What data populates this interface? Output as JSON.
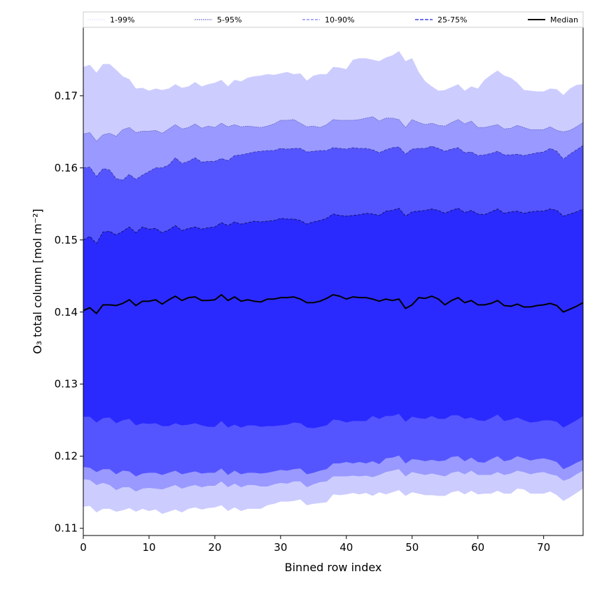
{
  "chart_data": {
    "type": "area",
    "xlabel": "Binned row index",
    "ylabel": "O₃ total column [mol m⁻²]",
    "xlim": [
      0,
      76
    ],
    "ylim": [
      0.109,
      0.1795
    ],
    "xticks": [
      0,
      10,
      20,
      30,
      40,
      50,
      60,
      70
    ],
    "yticks": [
      0.11,
      0.12,
      0.13,
      0.14,
      0.15,
      0.16,
      0.17
    ],
    "ytick_labels": [
      "0.11",
      "0.12",
      "0.13",
      "0.14",
      "0.15",
      "0.16",
      "0.17"
    ],
    "legend_position": "top",
    "colors": {
      "band_1_99": "#ccccff",
      "band_5_95": "#9999ff",
      "band_10_90": "#5555ff",
      "band_25_75": "#2a2aff",
      "median": "#000000",
      "line_1_99": "#e0e0ff",
      "line_5_95": "#6060c0",
      "line_10_90": "#3030a0",
      "line_25_75": "#101060"
    },
    "x": [
      0,
      1,
      2,
      3,
      4,
      5,
      6,
      7,
      8,
      9,
      10,
      11,
      12,
      13,
      14,
      15,
      16,
      17,
      18,
      19,
      20,
      21,
      22,
      23,
      24,
      25,
      26,
      27,
      28,
      29,
      30,
      31,
      32,
      33,
      34,
      35,
      36,
      37,
      38,
      39,
      40,
      41,
      42,
      43,
      44,
      45,
      46,
      47,
      48,
      49,
      50,
      51,
      52,
      53,
      54,
      55,
      56,
      57,
      58,
      59,
      60,
      61,
      62,
      63,
      64,
      65,
      66,
      67,
      68,
      69,
      70,
      71,
      72,
      73,
      74,
      75,
      76
    ],
    "legend": [
      "1-99%",
      "5-95%",
      "10-90%",
      "25-75%",
      "Median"
    ],
    "series": [
      {
        "name": "Median",
        "values": [
          0.1402,
          0.1406,
          0.1398,
          0.141,
          0.141,
          0.1409,
          0.1412,
          0.1417,
          0.1409,
          0.1415,
          0.1415,
          0.1417,
          0.1411,
          0.1417,
          0.1422,
          0.1416,
          0.142,
          0.1421,
          0.1416,
          0.1416,
          0.1417,
          0.1424,
          0.1416,
          0.1421,
          0.1415,
          0.1417,
          0.1415,
          0.1414,
          0.1418,
          0.1418,
          0.142,
          0.142,
          0.1421,
          0.1418,
          0.1413,
          0.1413,
          0.1415,
          0.1419,
          0.1424,
          0.1422,
          0.1418,
          0.1421,
          0.142,
          0.142,
          0.1418,
          0.1415,
          0.1418,
          0.1416,
          0.1418,
          0.1405,
          0.141,
          0.142,
          0.1419,
          0.1422,
          0.1418,
          0.141,
          0.1416,
          0.142,
          0.1413,
          0.1416,
          0.141,
          0.141,
          0.1412,
          0.1416,
          0.1409,
          0.1408,
          0.1411,
          0.1407,
          0.1407,
          0.1409,
          0.141,
          0.1412,
          0.1409,
          0.14,
          0.1404,
          0.1408,
          0.1413
        ]
      },
      {
        "name": "p1",
        "values": [
          0.113,
          0.1131,
          0.1122,
          0.1127,
          0.1127,
          0.1123,
          0.1125,
          0.1128,
          0.1123,
          0.1127,
          0.1124,
          0.1126,
          0.112,
          0.1123,
          0.1126,
          0.1122,
          0.1127,
          0.1129,
          0.1126,
          0.1128,
          0.1129,
          0.1132,
          0.1124,
          0.1129,
          0.1124,
          0.1127,
          0.1127,
          0.1127,
          0.1132,
          0.1134,
          0.1137,
          0.1137,
          0.1138,
          0.114,
          0.1132,
          0.1134,
          0.1135,
          0.1136,
          0.1147,
          0.1146,
          0.1147,
          0.1149,
          0.1147,
          0.1149,
          0.1145,
          0.115,
          0.1147,
          0.115,
          0.1153,
          0.1145,
          0.115,
          0.1148,
          0.1146,
          0.1146,
          0.1145,
          0.1145,
          0.115,
          0.1152,
          0.1147,
          0.1152,
          0.1147,
          0.1148,
          0.1148,
          0.1152,
          0.1148,
          0.1148,
          0.1155,
          0.1154,
          0.1148,
          0.1148,
          0.1148,
          0.1151,
          0.1146,
          0.1138,
          0.1143,
          0.1149,
          0.1155
        ]
      },
      {
        "name": "p5",
        "values": [
          0.1168,
          0.1167,
          0.116,
          0.1163,
          0.116,
          0.1153,
          0.1157,
          0.1157,
          0.1151,
          0.1155,
          0.1156,
          0.1155,
          0.1154,
          0.1157,
          0.116,
          0.1155,
          0.1158,
          0.116,
          0.1157,
          0.1159,
          0.1159,
          0.1165,
          0.1157,
          0.1162,
          0.1157,
          0.116,
          0.116,
          0.1158,
          0.1158,
          0.1161,
          0.1163,
          0.1162,
          0.1165,
          0.1165,
          0.1157,
          0.1161,
          0.1164,
          0.1165,
          0.1172,
          0.1172,
          0.1172,
          0.1173,
          0.1172,
          0.1173,
          0.1171,
          0.1174,
          0.1178,
          0.118,
          0.1182,
          0.1172,
          0.1178,
          0.1176,
          0.1174,
          0.1176,
          0.1174,
          0.1172,
          0.1177,
          0.1179,
          0.1175,
          0.118,
          0.1174,
          0.1174,
          0.1174,
          0.1178,
          0.1174,
          0.1176,
          0.118,
          0.1178,
          0.1175,
          0.1177,
          0.1178,
          0.1175,
          0.1173,
          0.1166,
          0.1169,
          0.1175,
          0.118
        ]
      },
      {
        "name": "p10",
        "values": [
          0.1185,
          0.1184,
          0.1178,
          0.1182,
          0.1182,
          0.1175,
          0.118,
          0.1179,
          0.1172,
          0.1176,
          0.1177,
          0.1177,
          0.1174,
          0.1177,
          0.118,
          0.1175,
          0.1177,
          0.1179,
          0.1176,
          0.1177,
          0.1177,
          0.1183,
          0.1174,
          0.118,
          0.1175,
          0.1177,
          0.1177,
          0.1176,
          0.1177,
          0.1179,
          0.1181,
          0.118,
          0.1182,
          0.1183,
          0.1175,
          0.1177,
          0.118,
          0.1182,
          0.119,
          0.119,
          0.1192,
          0.119,
          0.1192,
          0.119,
          0.1193,
          0.1189,
          0.1197,
          0.1198,
          0.1201,
          0.119,
          0.1196,
          0.1195,
          0.1193,
          0.1195,
          0.1193,
          0.1194,
          0.1199,
          0.12,
          0.1193,
          0.1198,
          0.1192,
          0.1191,
          0.1196,
          0.12,
          0.1193,
          0.1195,
          0.12,
          0.1197,
          0.1194,
          0.1196,
          0.1197,
          0.1195,
          0.1192,
          0.1182,
          0.1186,
          0.1191,
          0.1195
        ]
      },
      {
        "name": "p25",
        "values": [
          0.1255,
          0.1255,
          0.1247,
          0.1253,
          0.1254,
          0.1246,
          0.125,
          0.1252,
          0.1243,
          0.1246,
          0.1245,
          0.1246,
          0.1242,
          0.1242,
          0.1246,
          0.1243,
          0.1244,
          0.1246,
          0.1243,
          0.1241,
          0.1241,
          0.1249,
          0.124,
          0.1244,
          0.124,
          0.1243,
          0.1243,
          0.1241,
          0.1242,
          0.1242,
          0.1243,
          0.1244,
          0.1247,
          0.1246,
          0.124,
          0.1239,
          0.1241,
          0.1243,
          0.1251,
          0.125,
          0.1247,
          0.1249,
          0.1249,
          0.1249,
          0.1256,
          0.1252,
          0.1256,
          0.1256,
          0.1259,
          0.1248,
          0.1255,
          0.1253,
          0.1252,
          0.1256,
          0.1252,
          0.1252,
          0.1257,
          0.1257,
          0.1252,
          0.1254,
          0.125,
          0.1249,
          0.1253,
          0.1258,
          0.1249,
          0.1251,
          0.1254,
          0.125,
          0.1247,
          0.1248,
          0.125,
          0.125,
          0.1248,
          0.124,
          0.1245,
          0.125,
          0.1256
        ]
      },
      {
        "name": "p75",
        "values": [
          0.15,
          0.1505,
          0.1495,
          0.1511,
          0.1512,
          0.1507,
          0.1512,
          0.1518,
          0.151,
          0.1518,
          0.1515,
          0.1516,
          0.151,
          0.1514,
          0.152,
          0.1513,
          0.1516,
          0.1518,
          0.1515,
          0.1517,
          0.1518,
          0.1524,
          0.152,
          0.1525,
          0.1522,
          0.1524,
          0.1526,
          0.1525,
          0.1526,
          0.1527,
          0.153,
          0.1529,
          0.1529,
          0.1527,
          0.1522,
          0.1525,
          0.1527,
          0.153,
          0.1536,
          0.1534,
          0.1533,
          0.1534,
          0.1535,
          0.1537,
          0.1536,
          0.1534,
          0.154,
          0.1541,
          0.1544,
          0.1533,
          0.1539,
          0.154,
          0.1541,
          0.1543,
          0.1541,
          0.1537,
          0.1541,
          0.1544,
          0.1538,
          0.1541,
          0.1536,
          0.1535,
          0.1539,
          0.1543,
          0.1537,
          0.1539,
          0.154,
          0.1537,
          0.1539,
          0.154,
          0.154,
          0.1543,
          0.1541,
          0.1533,
          0.1536,
          0.1539,
          0.1543
        ]
      },
      {
        "name": "p90",
        "values": [
          0.16,
          0.1601,
          0.1588,
          0.1599,
          0.1597,
          0.1585,
          0.1583,
          0.1591,
          0.1584,
          0.159,
          0.1595,
          0.16,
          0.16,
          0.1604,
          0.1614,
          0.1606,
          0.1609,
          0.1614,
          0.1608,
          0.1609,
          0.1609,
          0.1613,
          0.161,
          0.1617,
          0.1618,
          0.162,
          0.1622,
          0.1623,
          0.1624,
          0.1624,
          0.1627,
          0.1626,
          0.1627,
          0.1627,
          0.1622,
          0.1623,
          0.1624,
          0.1624,
          0.1628,
          0.1627,
          0.1626,
          0.1628,
          0.1627,
          0.1627,
          0.1625,
          0.1621,
          0.1625,
          0.1628,
          0.1629,
          0.1619,
          0.1626,
          0.1627,
          0.1627,
          0.163,
          0.1627,
          0.1623,
          0.1626,
          0.1628,
          0.1621,
          0.1622,
          0.1617,
          0.1618,
          0.162,
          0.1623,
          0.1618,
          0.1618,
          0.1619,
          0.1617,
          0.1619,
          0.1621,
          0.1622,
          0.1627,
          0.1623,
          0.1612,
          0.1619,
          0.1625,
          0.1631
        ]
      },
      {
        "name": "p95",
        "values": [
          0.1647,
          0.1649,
          0.1637,
          0.1646,
          0.1648,
          0.1644,
          0.1653,
          0.1656,
          0.1649,
          0.1651,
          0.1651,
          0.1652,
          0.1648,
          0.1654,
          0.166,
          0.1654,
          0.1656,
          0.1661,
          0.1655,
          0.1658,
          0.1656,
          0.1662,
          0.1657,
          0.166,
          0.1657,
          0.1658,
          0.1657,
          0.1656,
          0.1658,
          0.1661,
          0.1666,
          0.1666,
          0.1667,
          0.1662,
          0.1657,
          0.1658,
          0.1656,
          0.166,
          0.1667,
          0.1666,
          0.1666,
          0.1666,
          0.1667,
          0.1669,
          0.1671,
          0.1665,
          0.1669,
          0.1669,
          0.1667,
          0.1656,
          0.1667,
          0.1663,
          0.166,
          0.1662,
          0.1659,
          0.1658,
          0.1663,
          0.1667,
          0.1661,
          0.1665,
          0.1656,
          0.1656,
          0.1658,
          0.166,
          0.1654,
          0.1655,
          0.1659,
          0.1656,
          0.1653,
          0.1653,
          0.1653,
          0.1657,
          0.1652,
          0.165,
          0.1652,
          0.1657,
          0.1663
        ]
      },
      {
        "name": "p99",
        "values": [
          0.174,
          0.1743,
          0.1732,
          0.1744,
          0.1744,
          0.1736,
          0.1727,
          0.1723,
          0.171,
          0.1711,
          0.1707,
          0.171,
          0.1708,
          0.171,
          0.1716,
          0.1711,
          0.1713,
          0.1719,
          0.1713,
          0.1716,
          0.1718,
          0.1722,
          0.1713,
          0.1722,
          0.172,
          0.1725,
          0.1727,
          0.1728,
          0.173,
          0.1729,
          0.1731,
          0.1733,
          0.173,
          0.1731,
          0.1721,
          0.1728,
          0.173,
          0.173,
          0.174,
          0.1739,
          0.1737,
          0.175,
          0.1752,
          0.1752,
          0.175,
          0.1748,
          0.1753,
          0.1756,
          0.1762,
          0.1748,
          0.1752,
          0.1733,
          0.172,
          0.1713,
          0.1707,
          0.1708,
          0.1712,
          0.1716,
          0.1707,
          0.1713,
          0.171,
          0.1722,
          0.1729,
          0.1735,
          0.1728,
          0.1725,
          0.1718,
          0.1708,
          0.1707,
          0.1706,
          0.1706,
          0.171,
          0.1709,
          0.1701,
          0.171,
          0.1715,
          0.1716
        ]
      }
    ]
  }
}
